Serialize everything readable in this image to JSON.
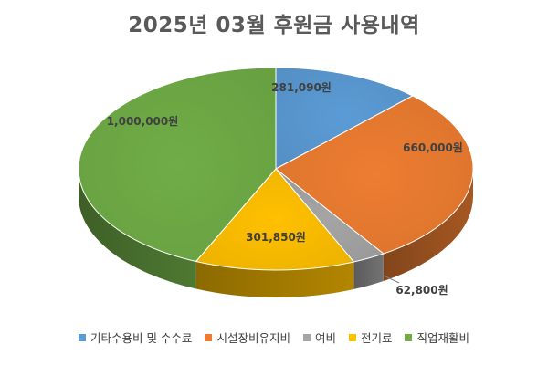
{
  "chart_data": {
    "type": "pie",
    "title": "2025년 03월 후원금 사용내역",
    "legend_position": "bottom",
    "slices": [
      {
        "name": "기타수용비 및 수수료",
        "value": 281090,
        "label": "281,090원",
        "color": "#5B9BD5"
      },
      {
        "name": "시설장비유지비",
        "value": 660000,
        "label": "660,000원",
        "color": "#ED7D31"
      },
      {
        "name": "여비",
        "value": 62800,
        "label": "62,800원",
        "color": "#A5A5A5"
      },
      {
        "name": "전기료",
        "value": 301850,
        "label": "301,850원",
        "color": "#FFC000"
      },
      {
        "name": "직업재활비",
        "value": 1000000,
        "label": "1,000,000원",
        "color": "#70AD47"
      }
    ]
  }
}
